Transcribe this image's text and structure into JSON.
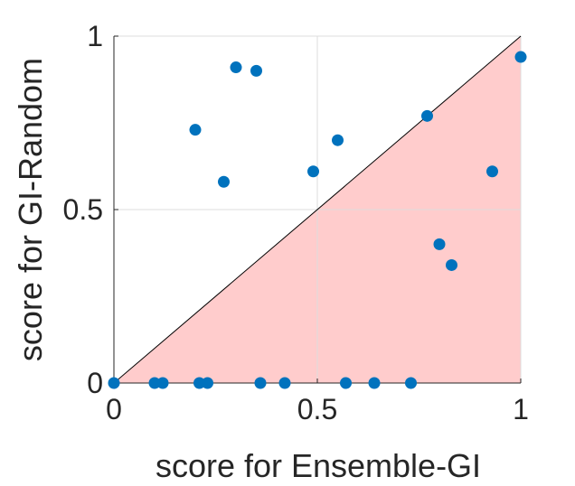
{
  "chart_data": {
    "type": "scatter",
    "title": "",
    "xlabel": "score for Ensemble-GI",
    "ylabel": "score for GI-Random",
    "xlim": [
      0,
      1
    ],
    "ylim": [
      0,
      1
    ],
    "grid": true,
    "x_ticks": [
      {
        "value": 0,
        "label": "0"
      },
      {
        "value": 0.5,
        "label": "0.5"
      },
      {
        "value": 1,
        "label": "1"
      }
    ],
    "y_ticks": [
      {
        "value": 0,
        "label": "0"
      },
      {
        "value": 0.5,
        "label": "0.5"
      },
      {
        "value": 1,
        "label": "1"
      }
    ],
    "reference_line": {
      "from": [
        0,
        0
      ],
      "to": [
        1,
        1
      ]
    },
    "shaded_region": "below-diagonal",
    "colors": {
      "points": "#0072bd",
      "shade": "#ffcccc",
      "line": "#000000",
      "grid": "#dddddd"
    },
    "points": [
      {
        "x": 0.0,
        "y": 0.0
      },
      {
        "x": 0.1,
        "y": 0.0
      },
      {
        "x": 0.12,
        "y": 0.0
      },
      {
        "x": 0.21,
        "y": 0.0
      },
      {
        "x": 0.23,
        "y": 0.0
      },
      {
        "x": 0.36,
        "y": 0.0
      },
      {
        "x": 0.42,
        "y": 0.0
      },
      {
        "x": 0.57,
        "y": 0.0
      },
      {
        "x": 0.64,
        "y": 0.0
      },
      {
        "x": 0.73,
        "y": 0.0
      },
      {
        "x": 0.2,
        "y": 0.73
      },
      {
        "x": 0.27,
        "y": 0.58
      },
      {
        "x": 0.3,
        "y": 0.91
      },
      {
        "x": 0.35,
        "y": 0.9
      },
      {
        "x": 0.49,
        "y": 0.61
      },
      {
        "x": 0.55,
        "y": 0.7
      },
      {
        "x": 0.77,
        "y": 0.77
      },
      {
        "x": 0.8,
        "y": 0.4
      },
      {
        "x": 0.83,
        "y": 0.34
      },
      {
        "x": 0.93,
        "y": 0.61
      },
      {
        "x": 1.0,
        "y": 0.94
      }
    ]
  }
}
